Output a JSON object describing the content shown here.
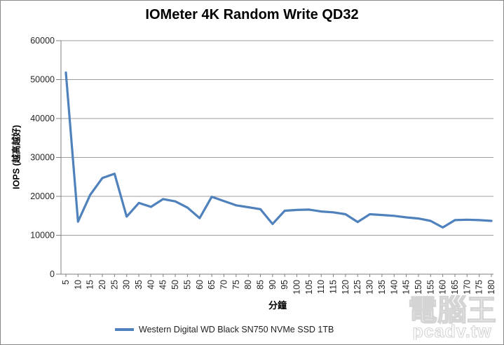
{
  "title": "IOMeter 4K Random Write QD32",
  "legend": {
    "label": "Western Digital WD Black SN750 NVMe SSD 1TB"
  },
  "watermark": {
    "logo_text": "電腦王",
    "url_text": "pcadv.tw"
  },
  "colors": {
    "series": "#4F81BD",
    "gridline": "#9D9D9D",
    "axis": "#808080",
    "tick_text": "#262626",
    "watermark": "#d4d4d4"
  },
  "chart_data": {
    "type": "line",
    "title": "IOMeter 4K Random Write QD32",
    "xlabel": "分鐘",
    "ylabel": "IOPS (越高越好)",
    "x": [
      5,
      10,
      15,
      20,
      25,
      30,
      35,
      40,
      45,
      50,
      55,
      60,
      65,
      70,
      75,
      80,
      85,
      90,
      95,
      100,
      105,
      110,
      115,
      120,
      125,
      130,
      135,
      140,
      145,
      150,
      155,
      160,
      165,
      170,
      175,
      180
    ],
    "series": [
      {
        "name": "Western Digital WD Black SN750 NVMe SSD 1TB",
        "values": [
          51800,
          13500,
          20400,
          24700,
          25800,
          14800,
          18300,
          17300,
          19300,
          18700,
          17100,
          14400,
          19900,
          18800,
          17700,
          17200,
          16700,
          12900,
          16300,
          16500,
          16600,
          16100,
          15900,
          15400,
          13400,
          15400,
          15200,
          15000,
          14600,
          14300,
          13700,
          12000,
          13900,
          14000,
          13900,
          13700
        ]
      }
    ],
    "ylim": [
      0,
      60000
    ],
    "ytick_step": 10000,
    "grid": true,
    "legend_position": "bottom"
  }
}
